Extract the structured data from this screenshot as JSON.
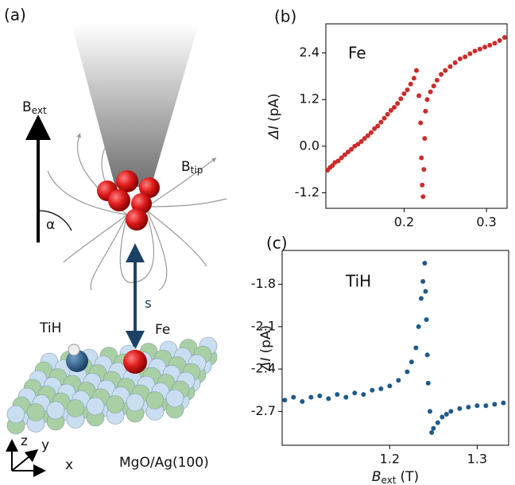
{
  "illustration": {
    "panel_label": "(a)",
    "b_ext": {
      "symbol": "B",
      "subscript": "ext"
    },
    "b_tip": {
      "symbol": "B",
      "subscript": "tip"
    },
    "angle": "α",
    "distance": "s",
    "adatoms": [
      "TiH",
      "Fe"
    ],
    "substrate": "MgO/Ag(100)",
    "axes": [
      "x",
      "y",
      "z"
    ]
  },
  "chart_data": [
    {
      "type": "scatter",
      "panel_label": "(b)",
      "annotation": "Fe",
      "ylabel": {
        "symbol": "ΔI",
        "unit": "(pA)"
      },
      "color": "#cc2b2b",
      "xlim": [
        0.105,
        0.325
      ],
      "xticks": [
        0.2,
        0.3
      ],
      "ylim": [
        -1.6,
        3.15
      ],
      "yticks": [
        -1.2,
        {
          "value": 0,
          "label": "0.0"
        },
        1.2,
        2.4
      ],
      "x": [
        0.107,
        0.11,
        0.113,
        0.116,
        0.12,
        0.124,
        0.128,
        0.132,
        0.136,
        0.14,
        0.144,
        0.148,
        0.152,
        0.156,
        0.16,
        0.164,
        0.168,
        0.172,
        0.176,
        0.18,
        0.184,
        0.188,
        0.192,
        0.196,
        0.2,
        0.204,
        0.208,
        0.212,
        0.215,
        0.218,
        0.22,
        0.221,
        0.222,
        0.223,
        0.224,
        0.225,
        0.226,
        0.228,
        0.232,
        0.236,
        0.24,
        0.245,
        0.25,
        0.256,
        0.262,
        0.268,
        0.274,
        0.28,
        0.286,
        0.292,
        0.298,
        0.304,
        0.31,
        0.316,
        0.322
      ],
      "values": [
        -0.62,
        -0.55,
        -0.5,
        -0.42,
        -0.38,
        -0.3,
        -0.22,
        -0.15,
        -0.08,
        0.0,
        0.05,
        0.12,
        0.2,
        0.27,
        0.35,
        0.45,
        0.52,
        0.62,
        0.72,
        0.82,
        0.92,
        1.0,
        1.1,
        1.22,
        1.35,
        1.45,
        1.6,
        1.75,
        1.95,
        1.3,
        0.6,
        -0.3,
        -1.0,
        -1.3,
        -0.6,
        0.2,
        0.9,
        1.2,
        1.4,
        1.55,
        1.7,
        1.85,
        1.95,
        2.05,
        2.15,
        2.25,
        2.3,
        2.38,
        2.45,
        2.5,
        2.55,
        2.6,
        2.65,
        2.72,
        2.8
      ]
    },
    {
      "type": "scatter",
      "panel_label": "(c)",
      "annotation": "TiH",
      "ylabel": {
        "symbol": "ΔI",
        "unit": "(pA)"
      },
      "xlabel": {
        "symbol": "B",
        "subscript": "ext",
        "unit": "(T)"
      },
      "color": "#1f5a8c",
      "xlim": [
        1.077,
        1.336
      ],
      "xticks": [
        1.2,
        1.3
      ],
      "ylim": [
        -2.94,
        -1.56
      ],
      "yticks": [
        -2.7,
        -2.4,
        -2.1,
        -1.8
      ],
      "x": [
        1.08,
        1.09,
        1.1,
        1.11,
        1.12,
        1.13,
        1.14,
        1.15,
        1.16,
        1.17,
        1.18,
        1.19,
        1.2,
        1.21,
        1.22,
        1.225,
        1.23,
        1.233,
        1.236,
        1.238,
        1.24,
        1.241,
        1.242,
        1.243,
        1.244,
        1.246,
        1.248,
        1.25,
        1.255,
        1.26,
        1.265,
        1.27,
        1.28,
        1.29,
        1.3,
        1.31,
        1.32,
        1.33
      ],
      "values": [
        -2.62,
        -2.6,
        -2.63,
        -2.6,
        -2.59,
        -2.61,
        -2.58,
        -2.6,
        -2.57,
        -2.58,
        -2.55,
        -2.54,
        -2.52,
        -2.48,
        -2.42,
        -2.35,
        -2.25,
        -2.1,
        -1.9,
        -1.78,
        -1.65,
        -1.85,
        -2.05,
        -2.3,
        -2.5,
        -2.7,
        -2.85,
        -2.82,
        -2.78,
        -2.74,
        -2.72,
        -2.7,
        -2.68,
        -2.67,
        -2.66,
        -2.66,
        -2.65,
        -2.64
      ]
    }
  ]
}
